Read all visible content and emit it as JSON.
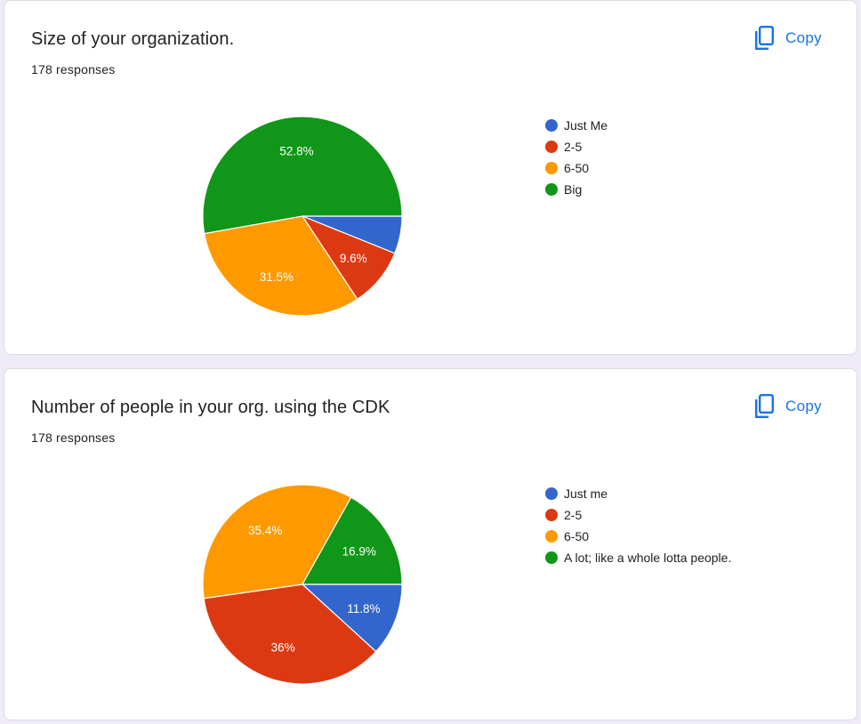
{
  "charts": [
    {
      "title": "Size of your organization.",
      "responses": "178 responses",
      "copy_label": "Copy",
      "legend": [
        {
          "label": "Just Me",
          "color": "#3366cc"
        },
        {
          "label": "2-5",
          "color": "#dc3912"
        },
        {
          "label": "6-50",
          "color": "#ff9900"
        },
        {
          "label": "Big",
          "color": "#109618"
        }
      ]
    },
    {
      "title": "Number of people in your org. using the CDK",
      "responses": "178 responses",
      "copy_label": "Copy",
      "legend": [
        {
          "label": "Just me",
          "color": "#3366cc"
        },
        {
          "label": "2-5",
          "color": "#dc3912"
        },
        {
          "label": "6-50",
          "color": "#ff9900"
        },
        {
          "label": "A lot; like a whole lotta people.",
          "color": "#109618"
        }
      ]
    }
  ],
  "chart_data": [
    {
      "type": "pie",
      "title": "Size of your organization.",
      "labels": [
        "Just Me",
        "2-5",
        "6-50",
        "Big"
      ],
      "values": [
        6.1,
        9.6,
        31.5,
        52.8
      ],
      "value_labels": [
        "",
        "9.6%",
        "31.5%",
        "52.8%"
      ],
      "colors": [
        "#3366cc",
        "#dc3912",
        "#ff9900",
        "#109618"
      ],
      "legend_position": "right"
    },
    {
      "type": "pie",
      "title": "Number of people in your org. using the CDK",
      "labels": [
        "Just me",
        "2-5",
        "6-50",
        "A lot; like a whole lotta people."
      ],
      "values": [
        11.8,
        36,
        35.4,
        16.9
      ],
      "value_labels": [
        "11.8%",
        "36%",
        "35.4%",
        "16.9%"
      ],
      "colors": [
        "#3366cc",
        "#dc3912",
        "#ff9900",
        "#109618"
      ],
      "legend_position": "right"
    }
  ],
  "colors": {
    "background": "#f0ebf8",
    "card": "#ffffff",
    "accent": "#1a73e8"
  },
  "icons": {
    "copy": "copy-icon"
  }
}
